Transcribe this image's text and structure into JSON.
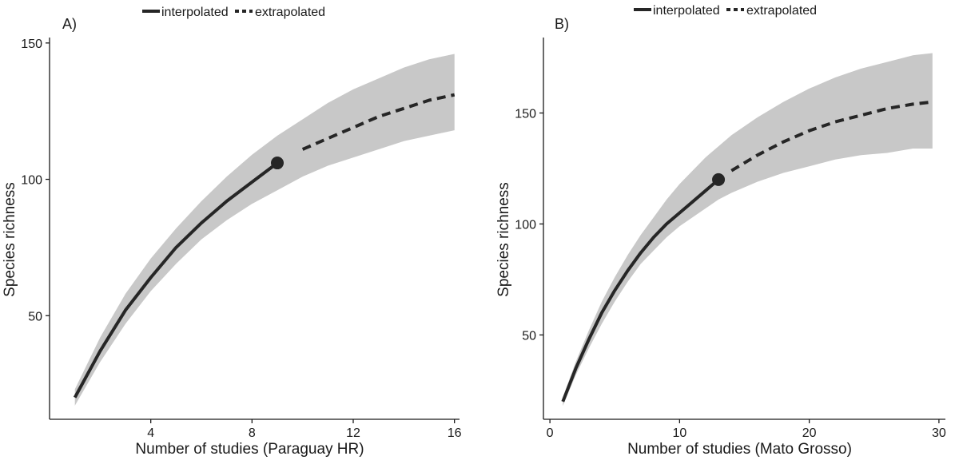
{
  "legend": {
    "interpolated": "interpolated",
    "extrapolated": "extrapolated"
  },
  "colors": {
    "band": "#c8c8c8",
    "line": "#262626",
    "axis": "#1a1a1a"
  },
  "chart_data": [
    {
      "type": "line",
      "panel_label": "A)",
      "xlabel": "Number of studies (Paraguay HR)",
      "ylabel": "Species richness",
      "xlim": [
        0,
        16.2
      ],
      "ylim": [
        12,
        152
      ],
      "xticks": [
        4,
        8,
        12,
        16
      ],
      "yticks": [
        50,
        100,
        150
      ],
      "observed": {
        "x": 9,
        "y": 106
      },
      "series": [
        {
          "name": "interpolated",
          "style": "solid",
          "x": [
            1,
            2,
            3,
            4,
            5,
            6,
            7,
            8,
            9
          ],
          "y": [
            20,
            37,
            52,
            64,
            75,
            84,
            92,
            99,
            106
          ]
        },
        {
          "name": "extrapolated",
          "style": "dashed",
          "x": [
            10,
            11,
            12,
            13,
            14,
            15,
            16
          ],
          "y": [
            111,
            115,
            119,
            123,
            126,
            129,
            131
          ]
        }
      ],
      "band": {
        "x": [
          1,
          2,
          3,
          4,
          5,
          6,
          7,
          8,
          9,
          10,
          11,
          12,
          13,
          14,
          15,
          16
        ],
        "lower": [
          17,
          33,
          47,
          59,
          69,
          78,
          85,
          91,
          96,
          101,
          105,
          108,
          111,
          114,
          116,
          118
        ],
        "upper": [
          23,
          42,
          58,
          71,
          82,
          92,
          101,
          109,
          116,
          122,
          128,
          133,
          137,
          141,
          144,
          146
        ]
      }
    },
    {
      "type": "line",
      "panel_label": "B)",
      "xlabel": "Number of studies (Mato Grosso)",
      "ylabel": "Species richness",
      "xlim": [
        -0.5,
        30.5
      ],
      "ylim": [
        12,
        184
      ],
      "xticks": [
        0,
        10,
        20,
        30
      ],
      "yticks": [
        50,
        100,
        150
      ],
      "observed": {
        "x": 13,
        "y": 120
      },
      "series": [
        {
          "name": "interpolated",
          "style": "solid",
          "x": [
            1,
            2,
            3,
            4,
            5,
            6,
            7,
            8,
            9,
            10,
            11,
            12,
            13
          ],
          "y": [
            20,
            35,
            48,
            60,
            70,
            79,
            87,
            94,
            100,
            105,
            110,
            115,
            120
          ]
        },
        {
          "name": "extrapolated",
          "style": "dashed",
          "x": [
            14,
            16,
            18,
            20,
            22,
            24,
            26,
            28,
            29.5
          ],
          "y": [
            124,
            131,
            137,
            142,
            146,
            149,
            152,
            154,
            155
          ]
        }
      ],
      "band": {
        "x": [
          1,
          2,
          3,
          4,
          5,
          6,
          7,
          8,
          9,
          10,
          11,
          12,
          13,
          14,
          16,
          18,
          20,
          22,
          24,
          26,
          28,
          29.5
        ],
        "lower": [
          18,
          32,
          44,
          55,
          65,
          74,
          82,
          88,
          94,
          99,
          103,
          107,
          111,
          114,
          119,
          123,
          126,
          129,
          131,
          132,
          134,
          134
        ],
        "upper": [
          22,
          38,
          52,
          65,
          76,
          86,
          95,
          103,
          111,
          118,
          124,
          130,
          135,
          140,
          148,
          155,
          161,
          166,
          170,
          173,
          176,
          177
        ]
      }
    }
  ]
}
